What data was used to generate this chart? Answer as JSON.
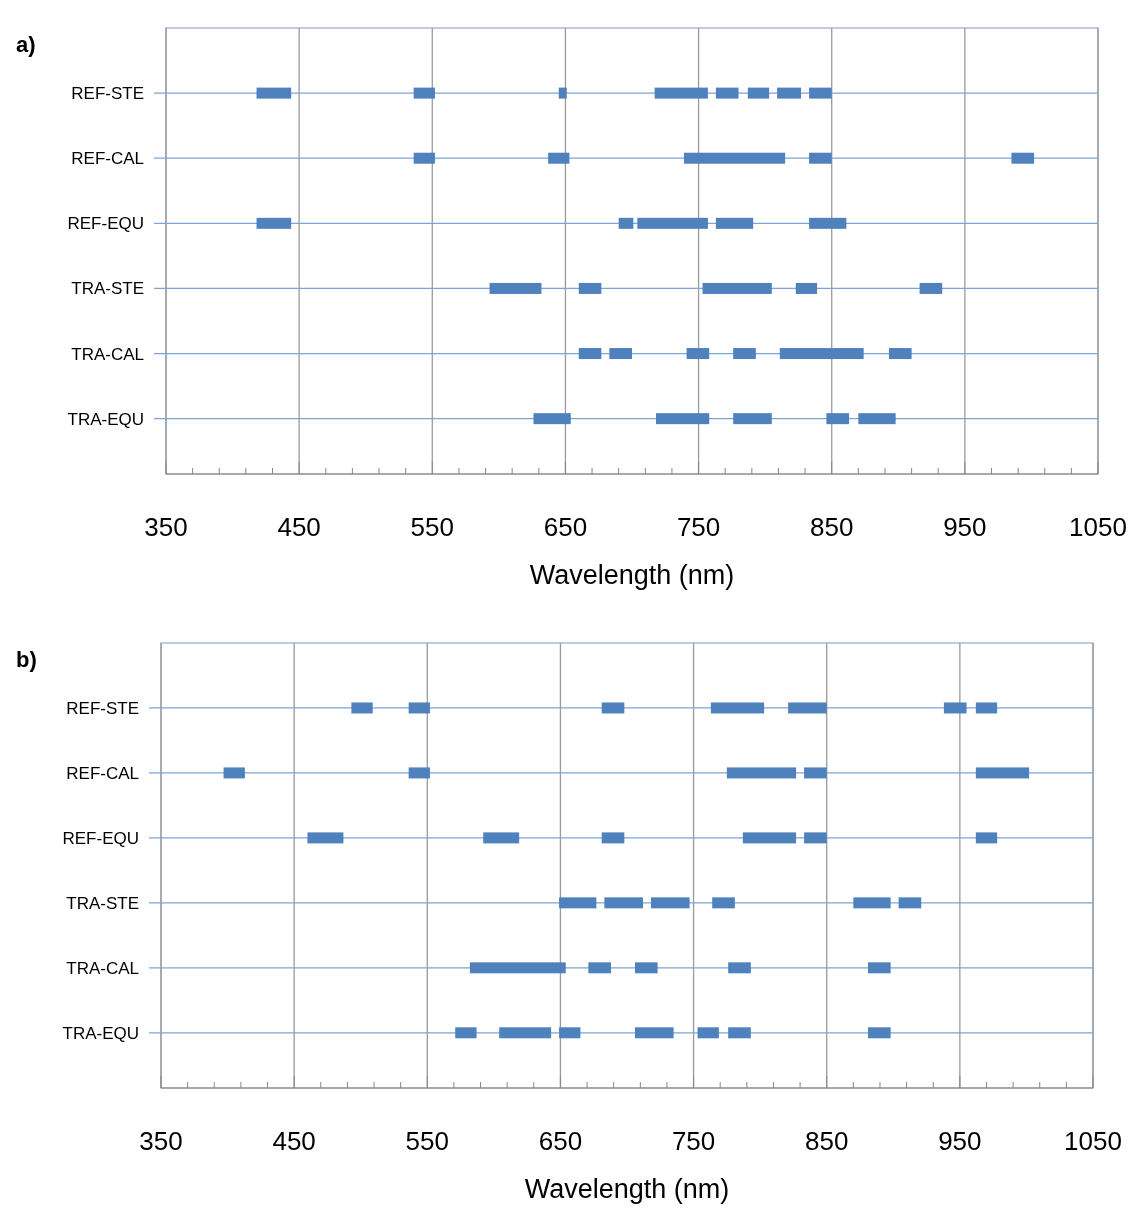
{
  "chart_data": [
    {
      "type": "bar",
      "orientation": "horizontal",
      "title": "a)",
      "xlabel": "Wavelength  (nm)",
      "categories": [
        "REF-STE",
        "REF-CAL",
        "REF-EQU",
        "TRA-STE",
        "TRA-CAL",
        "TRA-EQU"
      ],
      "xlim": [
        350,
        1050
      ],
      "xticks": [
        350,
        {
          "value": 370,
          "label": null
        },
        {
          "value": 390,
          "label": null
        },
        {
          "value": 410,
          "label": null
        },
        {
          "value": 430,
          "label": null
        },
        450,
        {
          "value": 470,
          "label": null
        },
        {
          "value": 490,
          "label": null
        },
        {
          "value": 510,
          "label": null
        },
        {
          "value": 530,
          "label": null
        },
        550,
        {
          "value": 570,
          "label": null
        },
        {
          "value": 590,
          "label": null
        },
        {
          "value": 610,
          "label": null
        },
        {
          "value": 630,
          "label": null
        },
        650,
        {
          "value": 670,
          "label": null
        },
        {
          "value": 690,
          "label": null
        },
        {
          "value": 710,
          "label": null
        },
        {
          "value": 730,
          "label": null
        },
        750,
        {
          "value": 770,
          "label": null
        },
        {
          "value": 790,
          "label": null
        },
        {
          "value": 810,
          "label": null
        },
        {
          "value": 830,
          "label": null
        },
        850,
        {
          "value": 870,
          "label": null
        },
        {
          "value": 890,
          "label": null
        },
        {
          "value": 910,
          "label": null
        },
        {
          "value": 930,
          "label": null
        },
        950,
        {
          "value": 970,
          "label": null
        },
        {
          "value": 990,
          "label": null
        },
        {
          "value": 1010,
          "label": null
        },
        {
          "value": 1030,
          "label": null
        },
        1050
      ],
      "grid": true,
      "series": [
        {
          "color": "#4f81bd",
          "base": [
            418,
            536,
            418,
            593,
            660,
            626
          ],
          "values": [
            26,
            16,
            26,
            39,
            17,
            28
          ]
        },
        {
          "color": "#4f81bd",
          "base": [
            536,
            637,
            690,
            660,
            683,
            718
          ],
          "values": [
            16,
            16,
            11,
            17,
            17,
            40
          ]
        },
        {
          "color": "#4f81bd",
          "base": [
            645,
            739,
            704,
            753,
            741,
            776
          ],
          "values": [
            6,
            76,
            53,
            52,
            17,
            29
          ]
        },
        {
          "color": "#4f81bd",
          "base": [
            717,
            833,
            763,
            823,
            776,
            846
          ],
          "values": [
            40,
            17,
            28,
            16,
            17,
            17
          ]
        },
        {
          "color": "#4f81bd",
          "base": [
            763,
            985,
            833,
            916,
            811,
            870
          ],
          "values": [
            17,
            17,
            28,
            17,
            63,
            28
          ]
        },
        {
          "color": "#4f81bd",
          "base": [
            787,
            null,
            null,
            null,
            893,
            null
          ],
          "values": [
            16,
            null,
            null,
            null,
            17,
            null
          ]
        },
        {
          "color": "#4f81bd",
          "base": [
            809,
            null,
            null,
            null,
            null,
            null
          ],
          "values": [
            18,
            null,
            null,
            null,
            null,
            null
          ]
        },
        {
          "color": "#4f81bd",
          "base": [
            833,
            null,
            null,
            null,
            null,
            null
          ],
          "values": [
            17,
            null,
            null,
            null,
            null,
            null
          ]
        }
      ]
    },
    {
      "type": "bar",
      "orientation": "horizontal",
      "title": "b)",
      "xlabel": "Wavelength  (nm)",
      "categories": [
        "REF-STE",
        "REF-CAL",
        "REF-EQU",
        "TRA-STE",
        "TRA-CAL",
        "TRA-EQU"
      ],
      "xlim": [
        350,
        1050
      ],
      "xticks": [
        350,
        {
          "value": 370,
          "label": null
        },
        {
          "value": 390,
          "label": null
        },
        {
          "value": 410,
          "label": null
        },
        {
          "value": 430,
          "label": null
        },
        450,
        {
          "value": 470,
          "label": null
        },
        {
          "value": 490,
          "label": null
        },
        {
          "value": 510,
          "label": null
        },
        {
          "value": 530,
          "label": null
        },
        550,
        {
          "value": 570,
          "label": null
        },
        {
          "value": 590,
          "label": null
        },
        {
          "value": 610,
          "label": null
        },
        {
          "value": 630,
          "label": null
        },
        650,
        {
          "value": 670,
          "label": null
        },
        {
          "value": 690,
          "label": null
        },
        {
          "value": 710,
          "label": null
        },
        {
          "value": 730,
          "label": null
        },
        750,
        {
          "value": 770,
          "label": null
        },
        {
          "value": 790,
          "label": null
        },
        {
          "value": 810,
          "label": null
        },
        {
          "value": 830,
          "label": null
        },
        850,
        {
          "value": 870,
          "label": null
        },
        {
          "value": 890,
          "label": null
        },
        {
          "value": 910,
          "label": null
        },
        {
          "value": 930,
          "label": null
        },
        950,
        {
          "value": 970,
          "label": null
        },
        {
          "value": 990,
          "label": null
        },
        {
          "value": 1010,
          "label": null
        },
        {
          "value": 1030,
          "label": null
        },
        1050
      ],
      "grid": true,
      "series": [
        {
          "color": "#4f81bd",
          "base": [
            493,
            397,
            460,
            649,
            582,
            571
          ],
          "values": [
            16,
            16,
            27,
            28,
            72,
            16
          ]
        },
        {
          "color": "#4f81bd",
          "base": [
            536,
            536,
            592,
            683,
            671,
            604
          ],
          "values": [
            16,
            16,
            27,
            29,
            17,
            39
          ]
        },
        {
          "color": "#4f81bd",
          "base": [
            681,
            775,
            681,
            718,
            706,
            649
          ],
          "values": [
            17,
            52,
            17,
            29,
            17,
            16
          ]
        },
        {
          "color": "#4f81bd",
          "base": [
            763,
            833,
            787,
            764,
            776,
            706
          ],
          "values": [
            40,
            17,
            40,
            17,
            17,
            29
          ]
        },
        {
          "color": "#4f81bd",
          "base": [
            821,
            962,
            833,
            870,
            881,
            753
          ],
          "values": [
            29,
            40,
            17,
            28,
            17,
            16
          ]
        },
        {
          "color": "#4f81bd",
          "base": [
            938,
            null,
            962,
            904,
            null,
            776
          ],
          "values": [
            17,
            null,
            16,
            17,
            null,
            17
          ]
        },
        {
          "color": "#4f81bd",
          "base": [
            962,
            null,
            null,
            null,
            null,
            881
          ],
          "values": [
            16,
            null,
            null,
            null,
            null,
            17
          ]
        }
      ]
    }
  ]
}
